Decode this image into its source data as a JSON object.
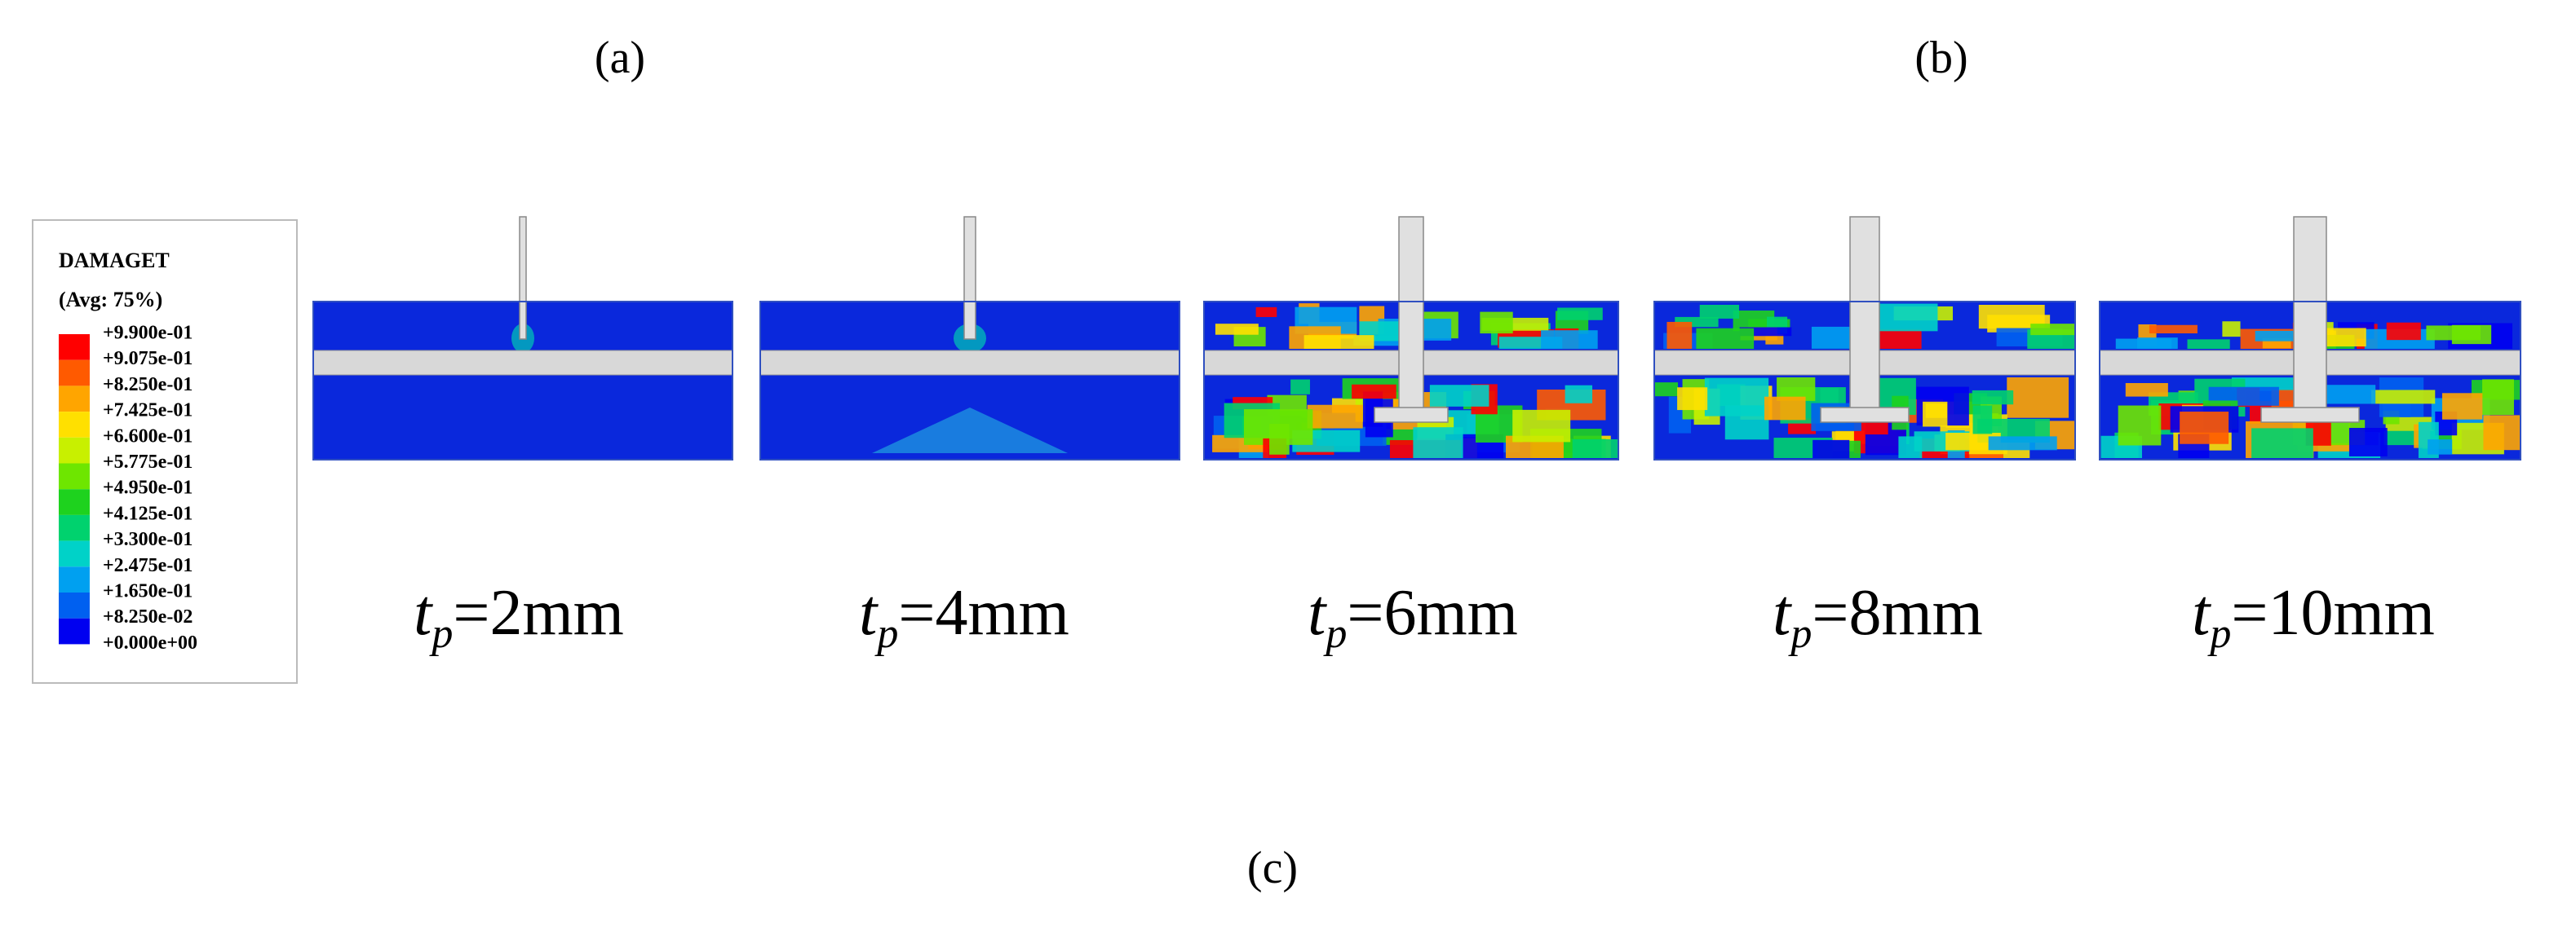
{
  "panel_labels": {
    "a": "(a)",
    "b": "(b)",
    "c": "(c)"
  },
  "legend": {
    "title": "DAMAGET",
    "subtitle": "(Avg: 75%)",
    "labels": [
      "+9.900e-01",
      "+9.075e-01",
      "+8.250e-01",
      "+7.425e-01",
      "+6.600e-01",
      "+5.775e-01",
      "+4.950e-01",
      "+4.125e-01",
      "+3.300e-01",
      "+2.475e-01",
      "+1.650e-01",
      "+8.250e-02",
      "+0.000e+00"
    ],
    "colors": [
      "#ff0000",
      "#ff5a00",
      "#ffa500",
      "#ffe000",
      "#c8f000",
      "#6ee600",
      "#1ed21e",
      "#00d26e",
      "#00d2c8",
      "#00a0f0",
      "#0060f0",
      "#0000f0"
    ]
  },
  "captions": [
    {
      "symbol": "t",
      "subscript": "p",
      "text": "=2mm"
    },
    {
      "symbol": "t",
      "subscript": "p",
      "text": "=4mm"
    },
    {
      "symbol": "t",
      "subscript": "p",
      "text": "=6mm"
    },
    {
      "symbol": "t",
      "subscript": "p",
      "text": "=8mm"
    },
    {
      "symbol": "t",
      "subscript": "p",
      "text": "=10mm"
    }
  ]
}
